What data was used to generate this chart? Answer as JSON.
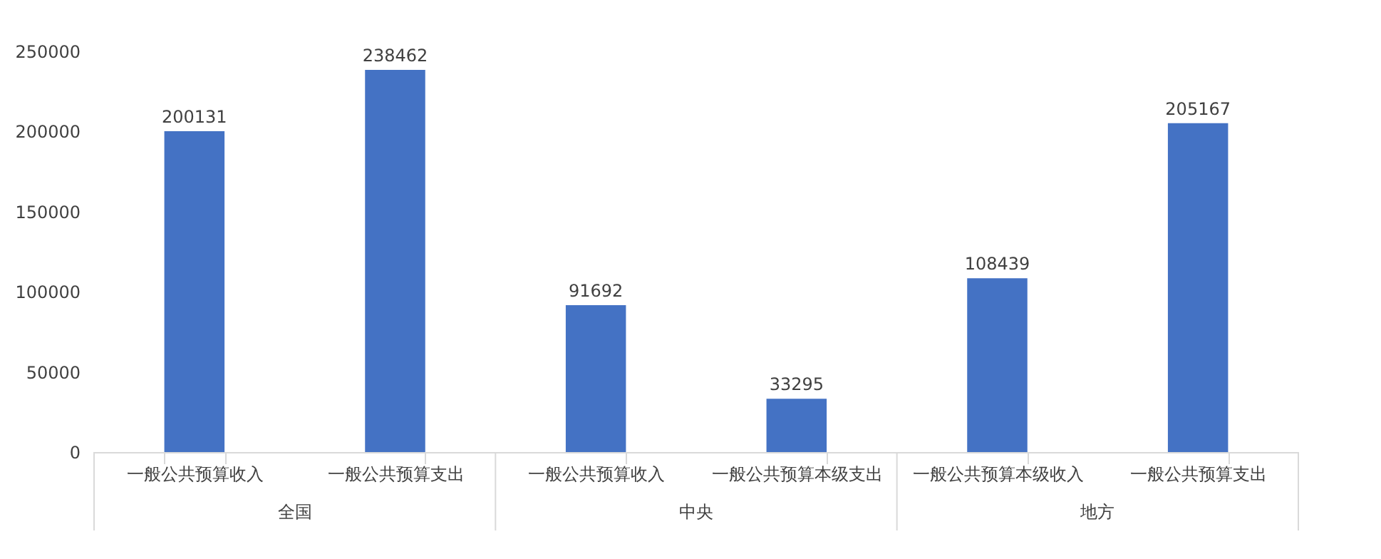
{
  "chart_data": {
    "type": "bar",
    "categories": [
      "一般公共预算收入",
      "一般公共预算支出",
      "一般公共预算收入",
      "一般公共预算本级支出",
      "一般公共预算本级收入",
      "一般公共预算支出"
    ],
    "values": [
      200131,
      238462,
      91692,
      33295,
      108439,
      205167
    ],
    "color": "#4472c4",
    "ylim": [
      0,
      250000
    ],
    "yticks": [
      0,
      50000,
      100000,
      150000,
      200000,
      250000
    ],
    "annotations": [
      "全国",
      "中央",
      "地方"
    ],
    "data_labels": true,
    "grid": false
  }
}
